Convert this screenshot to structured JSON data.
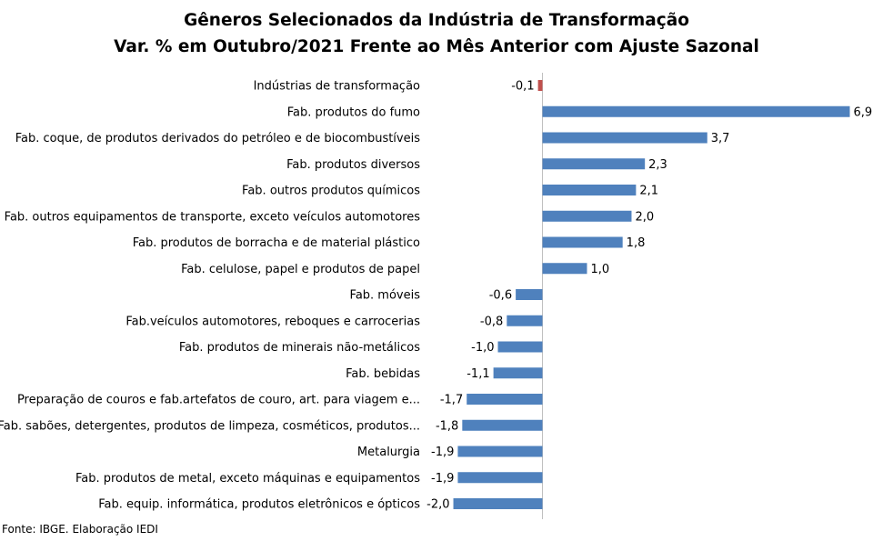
{
  "title": "Gêneros Selecionados da Indústria de Transformação",
  "subtitle": "Var. % em Outubro/2021 Frente ao Mês Anterior com Ajuste Sazonal",
  "source": "Fonte: IBGE. Elaboração IEDI",
  "chart_data": {
    "type": "bar",
    "orientation": "horizontal",
    "title": "Gêneros Selecionados da Indústria de Transformação",
    "subtitle": "Var. % em Outubro/2021 Frente ao Mês Anterior com Ajuste Sazonal",
    "categories": [
      "Indústrias de transformação",
      "Fab. produtos do fumo",
      "Fab. coque, de produtos derivados do petróleo e de biocombustíveis",
      "Fab. produtos diversos",
      "Fab. outros produtos químicos",
      "Fab. outros equipamentos de transporte, exceto veículos automotores",
      "Fab. produtos de borracha e de material plástico",
      "Fab. celulose, papel e produtos de papel",
      "Fab. móveis",
      "Fab.veículos automotores, reboques e carrocerias",
      "Fab. produtos de minerais não-metálicos",
      "Fab. bebidas",
      "Preparação de couros e fab.artefatos de couro, art. para viagem e...",
      "Fab. sabões, detergentes, produtos de limpeza, cosméticos, produtos...",
      "Metalurgia",
      "Fab. produtos de metal, exceto máquinas e equipamentos",
      "Fab. equip. informática, produtos eletrônicos e ópticos"
    ],
    "values": [
      -0.1,
      6.9,
      3.7,
      2.3,
      2.1,
      2.0,
      1.8,
      1.0,
      -0.6,
      -0.8,
      -1.0,
      -1.1,
      -1.7,
      -1.8,
      -1.9,
      -1.9,
      -2.0
    ],
    "value_labels": [
      "-0,1",
      "6,9",
      "3,7",
      "2,3",
      "2,1",
      "2,0",
      "1,8",
      "1,0",
      "-0,6",
      "-0,8",
      "-1,0",
      "-1,1",
      "-1,7",
      "-1,8",
      "-1,9",
      "-1,9",
      "-2,0"
    ],
    "highlight_index": 0,
    "colors": {
      "bar": "#4f81bd",
      "highlight": "#c0504d",
      "axis": "#bfbfbf"
    },
    "grid": false,
    "legend": "none"
  }
}
